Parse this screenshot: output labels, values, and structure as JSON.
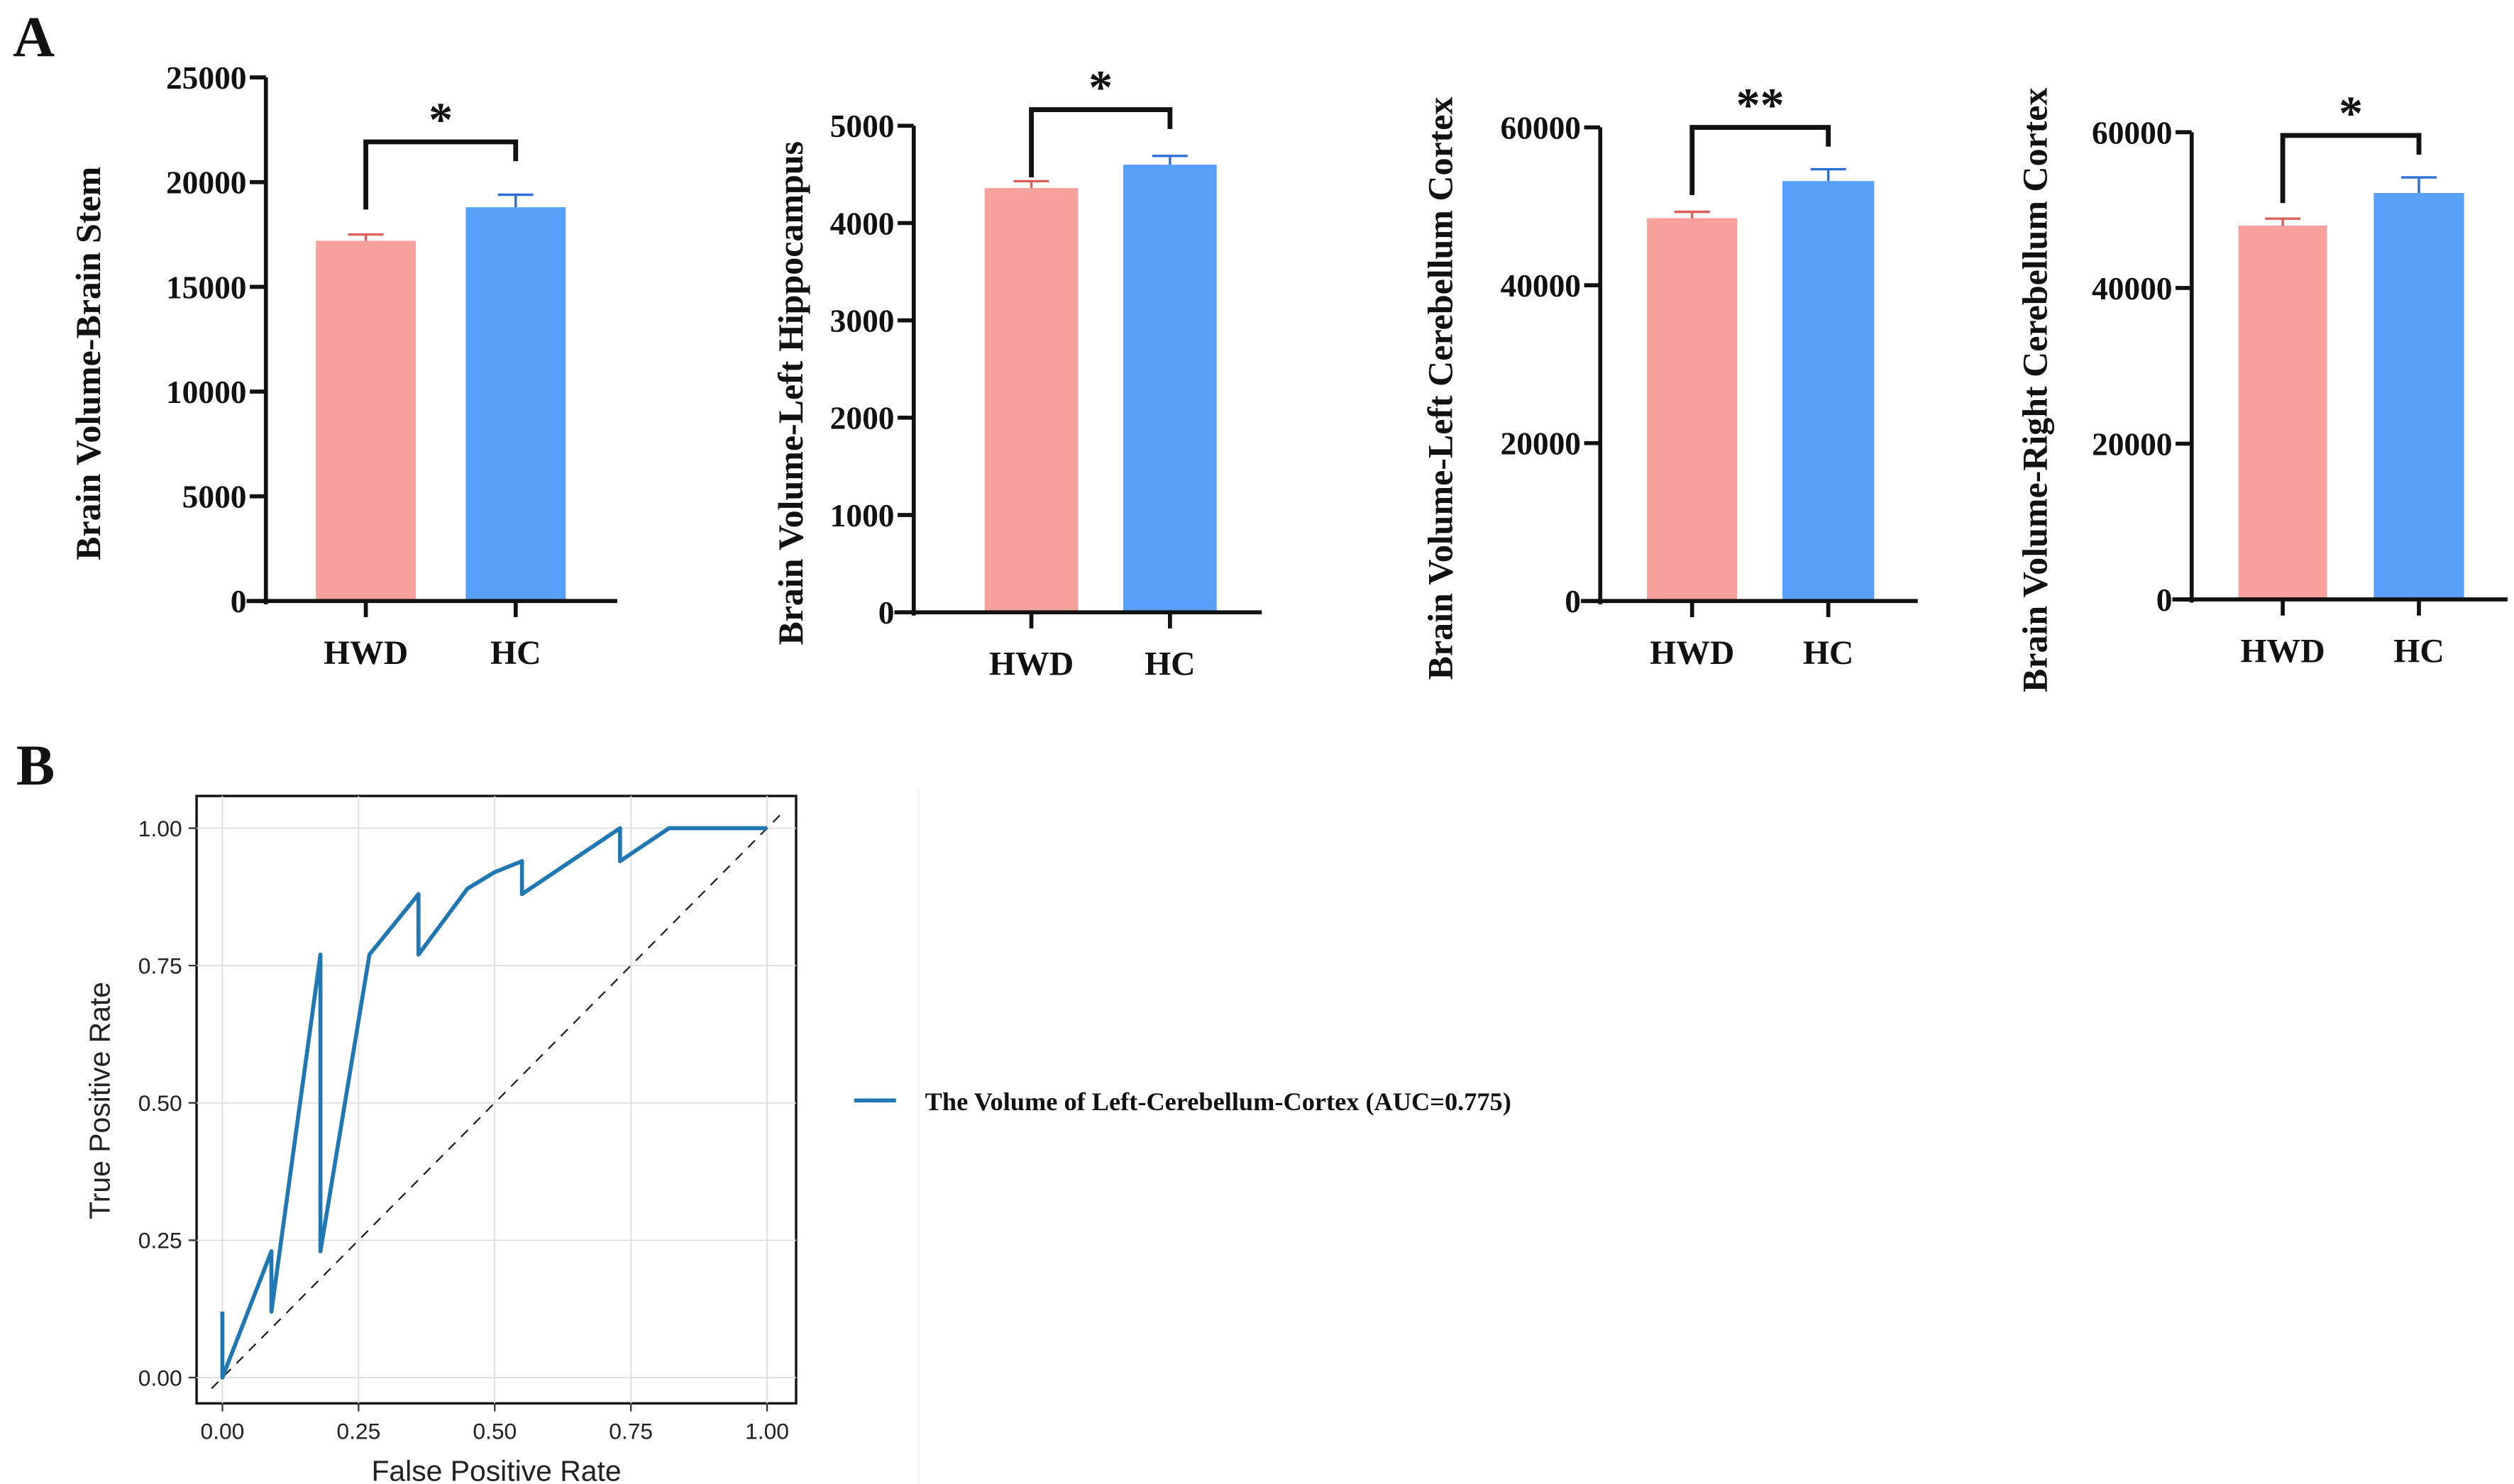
{
  "panel_labels": {
    "a": "A",
    "b": "B"
  },
  "colors": {
    "HWD": "#f8a09c",
    "HC": "#579ff9",
    "roc": "#1f78b4"
  },
  "chart_data": [
    {
      "type": "bar",
      "ylabel": "Brain Volume-Brain Stem",
      "categories": [
        "HWD",
        "HC"
      ],
      "values": [
        17200,
        18800
      ],
      "errors": [
        300,
        600
      ],
      "ylim": [
        0,
        25000
      ],
      "yticks": [
        "0",
        "5000",
        "10000",
        "15000",
        "20000",
        "25000"
      ],
      "significance": "*"
    },
    {
      "type": "bar",
      "ylabel": "Brain Volume-Left Hippocampus",
      "categories": [
        "HWD",
        "HC"
      ],
      "values": [
        4360,
        4600
      ],
      "errors": [
        70,
        90
      ],
      "ylim": [
        0,
        5000
      ],
      "yticks": [
        "0",
        "1000",
        "2000",
        "3000",
        "4000",
        "5000"
      ],
      "significance": "*"
    },
    {
      "type": "bar",
      "ylabel": "Brain Volume-Left Cerebellum Cortex",
      "categories": [
        "HWD",
        "HC"
      ],
      "values": [
        48500,
        53200
      ],
      "errors": [
        800,
        1500
      ],
      "ylim": [
        0,
        60000
      ],
      "yticks": [
        "0",
        "20000",
        "40000",
        "60000"
      ],
      "significance": "**"
    },
    {
      "type": "bar",
      "ylabel": "Brain Volume-Right Cerebellum Cortex",
      "categories": [
        "HWD",
        "HC"
      ],
      "values": [
        48000,
        52200
      ],
      "errors": [
        900,
        2000
      ],
      "ylim": [
        0,
        60000
      ],
      "yticks": [
        "0",
        "20000",
        "40000",
        "60000"
      ],
      "significance": "*"
    },
    {
      "type": "line",
      "xlabel": "False Positive Rate",
      "ylabel": "True Positive Rate",
      "xlim": [
        0,
        1
      ],
      "ylim": [
        0,
        1
      ],
      "xticks": [
        "0.00",
        "0.25",
        "0.50",
        "0.75",
        "1.00"
      ],
      "yticks": [
        "0.00",
        "0.25",
        "0.50",
        "0.75",
        "1.00"
      ],
      "grid": true,
      "legend_position": "right",
      "series": [
        {
          "name": "The Volume of Left-Cerebellum-Cortex (AUC=0.775)",
          "x": [
            0,
            0,
            0.09,
            0.09,
            0.18,
            0.18,
            0.27,
            0.36,
            0.36,
            0.45,
            0.5,
            0.55,
            0.55,
            0.73,
            0.73,
            0.82,
            1.0
          ],
          "y": [
            0.12,
            0,
            0.23,
            0.12,
            0.77,
            0.23,
            0.77,
            0.88,
            0.77,
            0.89,
            0.92,
            0.94,
            0.88,
            1.0,
            0.94,
            1.0,
            1.0
          ]
        }
      ],
      "reference_line": "diagonal dashed"
    }
  ]
}
